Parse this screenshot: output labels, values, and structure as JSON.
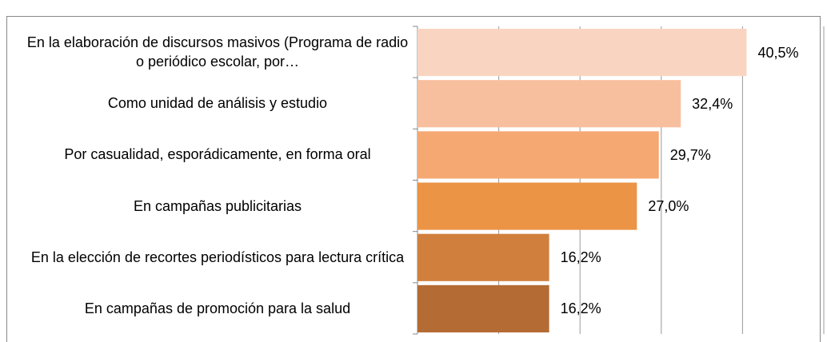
{
  "chart_data": {
    "type": "bar",
    "orientation": "horizontal",
    "categories": [
      "En la elaboración de discursos masivos (Programa de radio o periódico escolar, por…",
      "Como unidad de análisis y estudio",
      "Por casualidad, esporádicamente, en forma oral",
      "En campañas publicitarias",
      "En la elección de recortes periodísticos para lectura crítica",
      "En campañas de promoción para la salud"
    ],
    "values": [
      40.5,
      32.4,
      29.7,
      27.0,
      16.2,
      16.2
    ],
    "value_labels": [
      "40,5%",
      "32,4%",
      "29,7%",
      "27,0%",
      "16,2%",
      "16,2%"
    ],
    "colors": [
      "#f9d5c1",
      "#f8bf9f",
      "#f6a873",
      "#eb9446",
      "#d07f3c",
      "#b46b34"
    ],
    "xlim": [
      0,
      50
    ],
    "xticks": [
      0,
      10,
      20,
      30,
      40,
      50
    ],
    "grid": true
  }
}
